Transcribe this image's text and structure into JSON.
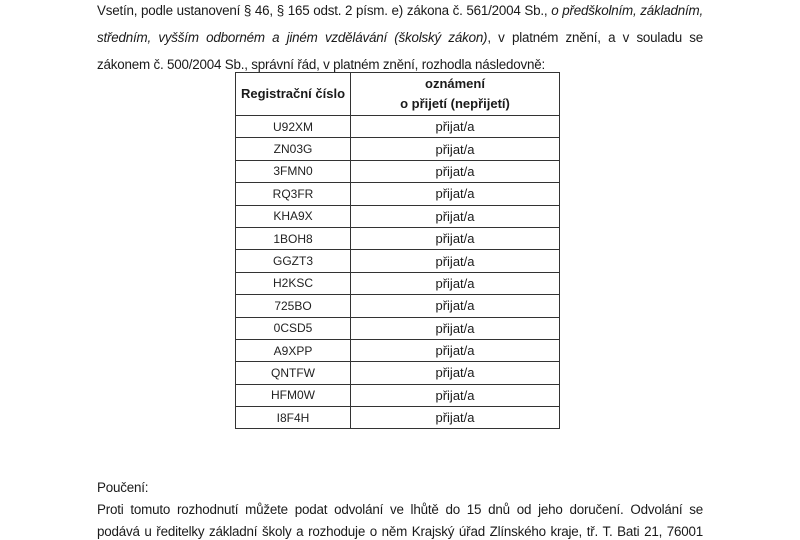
{
  "intro": {
    "l1a": "Vsetín, podle ustanovení § 46, § 165 odst. 2 písm. e) zákona č. 561/2004 Sb., ",
    "l1b": "o předškolním, základním,",
    "l2a": "středním, vyšším odborném a jiném vzdělávání (školský zákon)",
    "l2b": ", v platném znění, a v souladu se",
    "l3": "zákonem č. 500/2004 Sb., správní řád, v platném znění, rozhodla následovně:"
  },
  "table": {
    "headers": [
      "Registrační číslo",
      "oznámení",
      "o přijetí (nepřijetí)"
    ],
    "rows": [
      [
        "U92XM",
        "přijat/a"
      ],
      [
        "ZN03G",
        "přijat/a"
      ],
      [
        "3FMN0",
        "přijat/a"
      ],
      [
        "RQ3FR",
        "přijat/a"
      ],
      [
        "KHA9X",
        "přijat/a"
      ],
      [
        "1BOH8",
        "přijat/a"
      ],
      [
        "GGZT3",
        "přijat/a"
      ],
      [
        "H2KSC",
        "přijat/a"
      ],
      [
        "725BO",
        "přijat/a"
      ],
      [
        "0CSD5",
        "přijat/a"
      ],
      [
        "A9XPP",
        "přijat/a"
      ],
      [
        "QNTFW",
        "přijat/a"
      ],
      [
        "HFM0W",
        "přijat/a"
      ],
      [
        "I8F4H",
        "přijat/a"
      ]
    ]
  },
  "notice": {
    "title": "Poučení:",
    "l1": "Proti tomuto rozhodnutí můžete podat odvolání ve lhůtě do 15 dnů od jeho doručení. Odvolání se",
    "l2": "podává u ředitelky základní školy a rozhoduje o něm Krajský úřad Zlínského kraje, tř. T. Bati 21, 76001"
  }
}
